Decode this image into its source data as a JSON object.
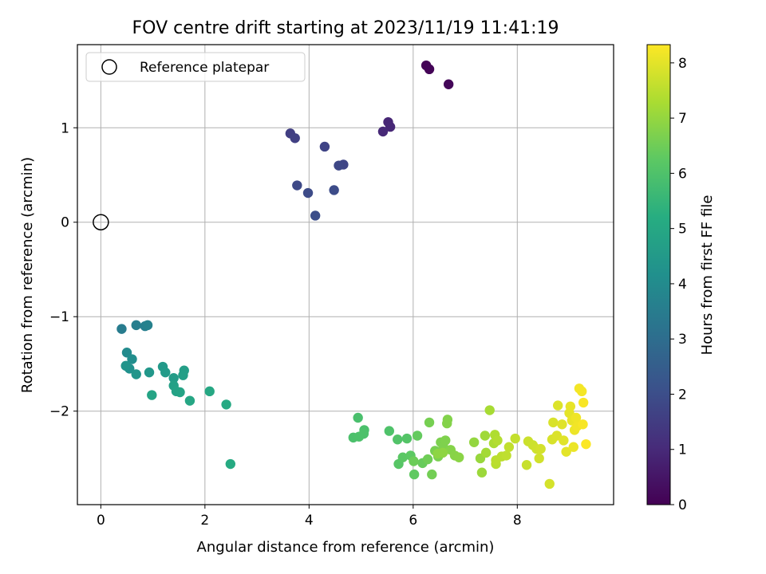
{
  "chart_data": {
    "type": "scatter",
    "title": "FOV centre drift starting at 2023/11/19 11:41:19",
    "xlabel": "Angular distance from reference (arcmin)",
    "ylabel": "Rotation from reference (arcmin)",
    "xlim": [
      -0.45,
      9.85
    ],
    "ylim": [
      -2.99,
      1.88
    ],
    "xticks": [
      0,
      2,
      4,
      6,
      8
    ],
    "yticks": [
      -2,
      -1,
      0,
      1
    ],
    "xtick_labels": [
      "0",
      "2",
      "4",
      "6",
      "8"
    ],
    "ytick_labels": [
      "−2",
      "−1",
      "0",
      "1"
    ],
    "grid": true,
    "legend": {
      "position": "upper-left",
      "entries": [
        "Reference platepar"
      ]
    },
    "reference_point": {
      "label": "Reference platepar",
      "x": 0,
      "y": 0
    },
    "colorbar": {
      "label": "Hours from first FF file",
      "colormap": "viridis",
      "range": [
        0,
        8.33
      ],
      "ticks": [
        0,
        1,
        2,
        3,
        4,
        5,
        6,
        7,
        8
      ],
      "tick_labels": [
        "0",
        "1",
        "2",
        "3",
        "4",
        "5",
        "6",
        "7",
        "8"
      ]
    },
    "points": [
      [
        6.25,
        1.66,
        0.05
      ],
      [
        6.31,
        1.62,
        0.08
      ],
      [
        6.68,
        1.46,
        0.15
      ],
      [
        5.52,
        1.06,
        0.9
      ],
      [
        5.56,
        1.01,
        0.93
      ],
      [
        5.42,
        0.96,
        0.96
      ],
      [
        3.64,
        0.94,
        1.55
      ],
      [
        3.73,
        0.89,
        1.6
      ],
      [
        4.3,
        0.8,
        1.7
      ],
      [
        4.66,
        0.61,
        1.75
      ],
      [
        4.57,
        0.6,
        1.8
      ],
      [
        3.77,
        0.39,
        1.85
      ],
      [
        3.98,
        0.31,
        1.9
      ],
      [
        4.48,
        0.34,
        1.95
      ],
      [
        4.12,
        0.07,
        2.0
      ],
      [
        0.4,
        -1.13,
        3.5
      ],
      [
        0.68,
        -1.09,
        3.55
      ],
      [
        0.85,
        -1.1,
        3.6
      ],
      [
        0.9,
        -1.09,
        3.65
      ],
      [
        0.5,
        -1.38,
        4.0
      ],
      [
        0.6,
        -1.45,
        4.1
      ],
      [
        0.55,
        -1.55,
        4.2
      ],
      [
        0.48,
        -1.52,
        4.3
      ],
      [
        0.68,
        -1.61,
        4.35
      ],
      [
        0.93,
        -1.59,
        4.4
      ],
      [
        1.19,
        -1.53,
        4.5
      ],
      [
        1.24,
        -1.59,
        4.55
      ],
      [
        1.4,
        -1.65,
        4.6
      ],
      [
        1.6,
        -1.57,
        4.65
      ],
      [
        1.58,
        -1.62,
        4.7
      ],
      [
        1.4,
        -1.73,
        4.75
      ],
      [
        1.45,
        -1.79,
        4.8
      ],
      [
        1.52,
        -1.8,
        4.85
      ],
      [
        0.98,
        -1.83,
        4.9
      ],
      [
        1.71,
        -1.89,
        4.95
      ],
      [
        2.09,
        -1.79,
        5.0
      ],
      [
        2.41,
        -1.93,
        5.05
      ],
      [
        2.49,
        -2.56,
        5.1
      ],
      [
        4.94,
        -2.07,
        5.9
      ],
      [
        5.06,
        -2.2,
        5.92
      ],
      [
        4.85,
        -2.28,
        5.94
      ],
      [
        4.96,
        -2.27,
        5.96
      ],
      [
        5.05,
        -2.24,
        5.98
      ],
      [
        5.54,
        -2.21,
        6.0
      ],
      [
        5.7,
        -2.3,
        6.05
      ],
      [
        5.88,
        -2.29,
        6.1
      ],
      [
        5.72,
        -2.56,
        6.15
      ],
      [
        5.8,
        -2.49,
        6.2
      ],
      [
        5.95,
        -2.47,
        6.25
      ],
      [
        6.02,
        -2.67,
        6.3
      ],
      [
        6.08,
        -2.26,
        6.35
      ],
      [
        6.18,
        -2.55,
        6.4
      ],
      [
        6.01,
        -2.53,
        6.45
      ],
      [
        6.28,
        -2.51,
        6.5
      ],
      [
        6.36,
        -2.67,
        6.55
      ],
      [
        6.31,
        -2.12,
        6.6
      ],
      [
        6.42,
        -2.42,
        6.62
      ],
      [
        6.48,
        -2.48,
        6.65
      ],
      [
        6.53,
        -2.33,
        6.68
      ],
      [
        6.58,
        -2.38,
        6.7
      ],
      [
        6.62,
        -2.31,
        6.72
      ],
      [
        6.66,
        -2.09,
        6.75
      ],
      [
        6.65,
        -2.13,
        6.78
      ],
      [
        6.72,
        -2.41,
        6.8
      ],
      [
        6.8,
        -2.47,
        6.83
      ],
      [
        6.88,
        -2.49,
        6.86
      ],
      [
        6.47,
        -2.45,
        6.9
      ],
      [
        6.57,
        -2.44,
        6.92
      ],
      [
        7.17,
        -2.33,
        7.0
      ],
      [
        7.29,
        -2.5,
        7.05
      ],
      [
        7.32,
        -2.65,
        7.1
      ],
      [
        7.38,
        -2.26,
        7.15
      ],
      [
        7.4,
        -2.44,
        7.2
      ],
      [
        7.47,
        -1.99,
        7.25
      ],
      [
        7.55,
        -2.34,
        7.3
      ],
      [
        7.57,
        -2.25,
        7.35
      ],
      [
        7.62,
        -2.31,
        7.4
      ],
      [
        7.59,
        -2.56,
        7.45
      ],
      [
        7.59,
        -2.52,
        7.5
      ],
      [
        7.7,
        -2.48,
        7.52
      ],
      [
        7.79,
        -2.47,
        7.55
      ],
      [
        7.84,
        -2.38,
        7.58
      ],
      [
        7.96,
        -2.29,
        7.6
      ],
      [
        8.18,
        -2.57,
        7.65
      ],
      [
        8.21,
        -2.32,
        7.7
      ],
      [
        8.3,
        -2.36,
        7.72
      ],
      [
        8.37,
        -2.4,
        7.75
      ],
      [
        8.42,
        -2.5,
        7.78
      ],
      [
        8.45,
        -2.4,
        7.8
      ],
      [
        8.62,
        -2.77,
        7.82
      ],
      [
        8.67,
        -2.3,
        7.85
      ],
      [
        8.69,
        -2.12,
        7.87
      ],
      [
        8.76,
        -2.26,
        7.9
      ],
      [
        8.78,
        -1.94,
        7.92
      ],
      [
        8.86,
        -2.14,
        7.95
      ],
      [
        8.89,
        -2.31,
        7.97
      ],
      [
        8.94,
        -2.43,
        8.0
      ],
      [
        9.0,
        -2.02,
        8.02
      ],
      [
        9.02,
        -1.95,
        8.05
      ],
      [
        9.05,
        -2.1,
        8.08
      ],
      [
        9.08,
        -2.38,
        8.1
      ],
      [
        9.1,
        -2.2,
        8.12
      ],
      [
        9.13,
        -2.07,
        8.15
      ],
      [
        9.15,
        -2.16,
        8.18
      ],
      [
        9.19,
        -1.76,
        8.2
      ],
      [
        9.24,
        -1.79,
        8.22
      ],
      [
        9.26,
        -2.14,
        8.25
      ],
      [
        9.27,
        -1.91,
        8.27
      ],
      [
        9.32,
        -2.35,
        8.3
      ]
    ]
  }
}
